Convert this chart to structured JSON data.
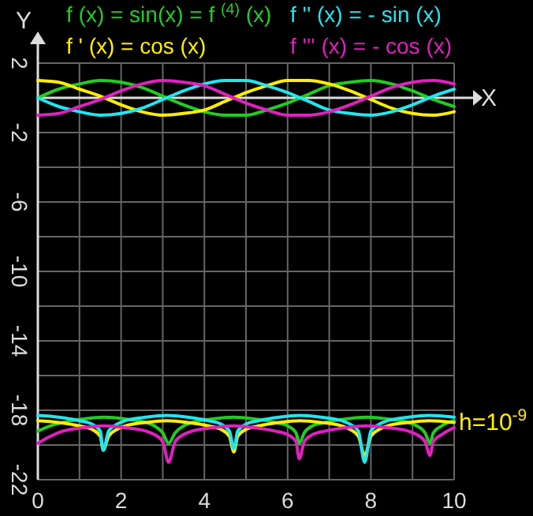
{
  "chart_data": {
    "type": "line",
    "xlabel": "X",
    "ylabel": "Y",
    "xlim": [
      0,
      10
    ],
    "ylim": [
      -22,
      2
    ],
    "xticks": [
      0,
      {
        "value": 1,
        "label": null
      },
      2,
      {
        "value": 3,
        "label": null
      },
      4,
      {
        "value": 5,
        "label": null
      },
      6,
      {
        "value": 7,
        "label": null
      },
      8,
      {
        "value": 9,
        "label": null
      },
      10
    ],
    "yticks": [
      -22,
      {
        "value": -20,
        "label": null
      },
      -18,
      {
        "value": -16,
        "label": null
      },
      -14,
      {
        "value": -12,
        "label": null
      },
      -10,
      {
        "value": -8,
        "label": null
      },
      -6,
      {
        "value": -4,
        "label": null
      },
      -2,
      {
        "value": 0,
        "label": null
      },
      2
    ],
    "grid": true,
    "legend": "top",
    "line_style": "solid",
    "annotations": [
      "h=10$^{-9}$"
    ],
    "series": [
      {
        "name": "f (x) = sin(x) = f $^{(4)}$ (x)",
        "color": "#22cc22",
        "x": [
          0,
          0.5,
          1,
          1.5,
          2,
          2.5,
          3,
          3.5,
          4,
          4.5,
          5,
          5.5,
          6,
          6.5,
          7,
          7.5,
          8,
          8.5,
          9,
          9.5,
          10
        ],
        "values": [
          0,
          0.5,
          0.8,
          1.0,
          0.9,
          0.6,
          0.1,
          -0.4,
          -0.8,
          -1.0,
          -1.0,
          -0.7,
          -0.3,
          0.2,
          0.7,
          0.9,
          1.0,
          0.8,
          0.4,
          -0.1,
          -0.5
        ]
      },
      {
        "name": "f ' (x) = cos (x)",
        "color": "#ffee00",
        "x": [
          0,
          0.5,
          1,
          1.5,
          2,
          2.5,
          3,
          3.5,
          4,
          4.5,
          5,
          5.5,
          6,
          6.5,
          7,
          7.5,
          8,
          8.5,
          9,
          9.5,
          10
        ],
        "values": [
          1,
          0.9,
          0.5,
          0.1,
          -0.4,
          -0.8,
          -1.0,
          -0.9,
          -0.7,
          -0.2,
          0.3,
          0.7,
          1.0,
          1.0,
          0.8,
          0.4,
          -0.1,
          -0.6,
          -0.9,
          -1.0,
          -0.8
        ]
      },
      {
        "name": "f '' (x) = - sin (x)",
        "color": "#22e5f0",
        "x": [
          0,
          0.5,
          1,
          1.5,
          2,
          2.5,
          3,
          3.5,
          4,
          4.5,
          5,
          5.5,
          6,
          6.5,
          7,
          7.5,
          8,
          8.5,
          9,
          9.5,
          10
        ],
        "values": [
          0,
          -0.5,
          -0.8,
          -1.0,
          -0.9,
          -0.6,
          -0.1,
          0.4,
          0.8,
          1.0,
          1.0,
          0.7,
          0.3,
          -0.2,
          -0.7,
          -0.9,
          -1.0,
          -0.8,
          -0.4,
          0.1,
          0.5
        ]
      },
      {
        "name": "f ''' (x) = - cos (x)",
        "color": "#e020c0",
        "x": [
          0,
          0.5,
          1,
          1.5,
          2,
          2.5,
          3,
          3.5,
          4,
          4.5,
          5,
          5.5,
          6,
          6.5,
          7,
          7.5,
          8,
          8.5,
          9,
          9.5,
          10
        ],
        "values": [
          -1,
          -0.9,
          -0.5,
          -0.1,
          0.4,
          0.8,
          1.0,
          0.9,
          0.7,
          0.2,
          -0.3,
          -0.7,
          -1.0,
          -1.0,
          -0.8,
          -0.4,
          0.1,
          0.6,
          0.9,
          1.0,
          0.8
        ]
      },
      {
        "color": "#22cc22",
        "x": [
          0,
          0.3,
          0.6,
          1.1,
          1.6,
          2.1,
          2.6,
          2.8,
          3.0,
          3.14,
          3.3,
          3.5,
          3.7,
          4.2,
          4.7,
          5.2,
          5.7,
          6.0,
          6.2,
          6.28,
          6.4,
          6.6,
          6.9,
          7.4,
          7.9,
          8.4,
          8.9,
          9.1,
          9.3,
          9.42,
          9.5,
          9.7,
          10
        ],
        "values": [
          -19.2,
          -18.9,
          -18.7,
          -18.5,
          -18.4,
          -18.5,
          -18.7,
          -18.9,
          -19.3,
          -19.9,
          -19.3,
          -18.9,
          -18.7,
          -18.5,
          -18.4,
          -18.5,
          -18.7,
          -18.9,
          -19.3,
          -19.9,
          -19.3,
          -18.9,
          -18.7,
          -18.5,
          -18.4,
          -18.5,
          -18.7,
          -18.9,
          -19.3,
          -19.9,
          -19.3,
          -18.9,
          -18.6
        ]
      },
      {
        "color": "#ffee00",
        "x": [
          0,
          0.5,
          1,
          1.3,
          1.5,
          1.57,
          1.7,
          1.9,
          2.1,
          2.6,
          3.1,
          3.6,
          4.1,
          4.4,
          4.6,
          4.71,
          4.8,
          5.0,
          5.3,
          5.8,
          6.3,
          6.8,
          7.3,
          7.5,
          7.7,
          7.85,
          8.0,
          8.2,
          8.4,
          8.9,
          9.4,
          10
        ],
        "values": [
          -18.6,
          -18.7,
          -18.9,
          -19.1,
          -19.5,
          -20.3,
          -19.5,
          -19.1,
          -18.9,
          -18.7,
          -18.6,
          -18.7,
          -18.9,
          -19.1,
          -19.5,
          -20.4,
          -19.5,
          -19.1,
          -18.9,
          -18.7,
          -18.6,
          -18.7,
          -18.9,
          -19.1,
          -19.5,
          -20.6,
          -19.5,
          -19.1,
          -18.9,
          -18.7,
          -18.6,
          -18.7
        ]
      },
      {
        "color": "#22e5f0",
        "x": [
          0,
          0.5,
          1,
          1.3,
          1.5,
          1.57,
          1.7,
          1.9,
          2.1,
          2.6,
          3.1,
          3.6,
          4.1,
          4.4,
          4.6,
          4.71,
          4.8,
          5.0,
          5.3,
          5.8,
          6.3,
          6.8,
          7.3,
          7.5,
          7.7,
          7.85,
          8.0,
          8.2,
          8.4,
          8.9,
          9.4,
          10
        ],
        "values": [
          -18.3,
          -18.4,
          -18.6,
          -18.8,
          -19.2,
          -20.3,
          -19.2,
          -18.8,
          -18.6,
          -18.4,
          -18.3,
          -18.4,
          -18.6,
          -18.8,
          -19.2,
          -20.2,
          -19.2,
          -18.8,
          -18.6,
          -18.4,
          -18.3,
          -18.4,
          -18.6,
          -18.8,
          -19.2,
          -21.0,
          -19.2,
          -18.8,
          -18.6,
          -18.4,
          -18.3,
          -18.4
        ]
      },
      {
        "color": "#e020c0",
        "x": [
          0,
          0.3,
          0.6,
          1.1,
          1.6,
          2.1,
          2.6,
          2.8,
          3.0,
          3.14,
          3.3,
          3.5,
          3.7,
          4.2,
          4.7,
          5.2,
          5.7,
          6.0,
          6.2,
          6.28,
          6.4,
          6.6,
          6.9,
          7.4,
          7.9,
          8.4,
          8.9,
          9.1,
          9.3,
          9.42,
          9.5,
          9.7,
          10
        ],
        "values": [
          -19.9,
          -19.5,
          -19.2,
          -19.0,
          -18.9,
          -19.0,
          -19.2,
          -19.4,
          -19.8,
          -21.0,
          -19.8,
          -19.4,
          -19.2,
          -19.0,
          -18.9,
          -19.0,
          -19.2,
          -19.4,
          -19.8,
          -20.8,
          -19.8,
          -19.4,
          -19.2,
          -19.0,
          -18.9,
          -19.0,
          -19.2,
          -19.4,
          -19.8,
          -20.6,
          -19.8,
          -19.4,
          -19.0
        ]
      }
    ]
  }
}
